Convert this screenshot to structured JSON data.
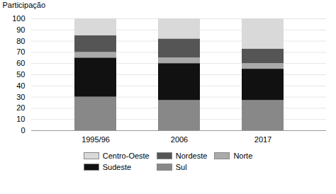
{
  "chart_data": {
    "type": "bar",
    "stacked": true,
    "categories": [
      "1995/96",
      "2006",
      "2017"
    ],
    "series": [
      {
        "name": "Sul",
        "color": "#888888",
        "values": [
          30,
          27,
          27
        ]
      },
      {
        "name": "Sudeste",
        "color": "#111111",
        "values": [
          35,
          33,
          28
        ]
      },
      {
        "name": "Norte",
        "color": "#aaaaaa",
        "values": [
          5,
          5,
          5
        ]
      },
      {
        "name": "Nordeste",
        "color": "#555555",
        "values": [
          15,
          17,
          13
        ]
      },
      {
        "name": "Centro-Oeste",
        "color": "#d9d9d9",
        "values": [
          15,
          18,
          27
        ]
      }
    ],
    "ylabel": "Participação",
    "ylim": [
      0,
      100
    ],
    "yticks": [
      0,
      10,
      20,
      30,
      40,
      50,
      60,
      70,
      80,
      90,
      100
    ],
    "grid": true,
    "legend": "bottom"
  }
}
